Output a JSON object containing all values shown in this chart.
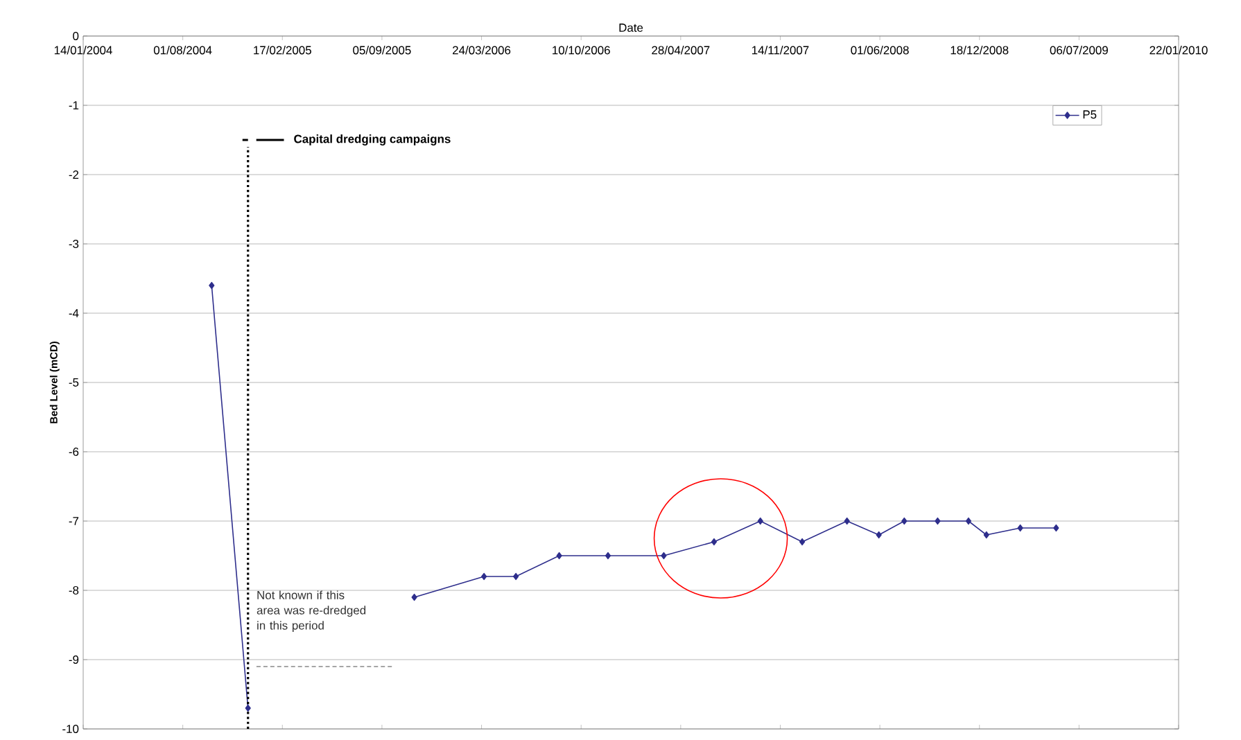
{
  "chart_data": {
    "type": "line",
    "xlabel": "Date",
    "ylabel": "Bed Level (mCD)",
    "x": [
      "2004-09-28",
      "2004-12-10",
      "2005-05-01",
      "2005-11-09",
      "2006-03-29",
      "2006-06-01",
      "2006-08-27",
      "2006-12-03",
      "2007-03-25",
      "2007-07-04",
      "2007-10-05",
      "2007-12-28",
      "2008-03-27",
      "2008-05-30",
      "2008-07-20",
      "2008-09-25",
      "2008-11-26",
      "2009-01-01",
      "2009-03-10",
      "2009-05-21"
    ],
    "series": [
      {
        "name": "P5",
        "color": "#2e2e8c",
        "values": [
          -3.6,
          -9.7,
          null,
          -8.1,
          -7.8,
          -7.8,
          -7.5,
          -7.5,
          -7.5,
          -7.3,
          -7.0,
          -7.3,
          -7.0,
          -7.2,
          -7.0,
          -7.0,
          -7.0,
          -7.2,
          -7.1,
          -7.1
        ]
      },
      {
        "color": "#4c4c4c",
        "x": [
          "2004-12-27",
          "2005-09-30"
        ],
        "values": [
          -9.1,
          -9.1
        ],
        "line_style": "dashed",
        "marker": "none"
      }
    ],
    "xlim": [
      "2004-01-14",
      "2010-01-22"
    ],
    "xticks": [
      {
        "value": "2004-01-14",
        "label": "14/01/2004"
      },
      {
        "value": "2004-08-01",
        "label": "01/08/2004"
      },
      {
        "value": "2005-02-17",
        "label": "17/02/2005"
      },
      {
        "value": "2005-09-05",
        "label": "05/09/2005"
      },
      {
        "value": "2006-03-24",
        "label": "24/03/2006"
      },
      {
        "value": "2006-10-10",
        "label": "10/10/2006"
      },
      {
        "value": "2007-04-28",
        "label": "28/04/2007"
      },
      {
        "value": "2007-11-14",
        "label": "14/11/2007"
      },
      {
        "value": "2008-06-01",
        "label": "01/06/2008"
      },
      {
        "value": "2008-12-18",
        "label": "18/12/2008"
      },
      {
        "value": "2009-07-06",
        "label": "06/07/2009"
      },
      {
        "value": "2010-01-22",
        "label": "22/01/2010"
      }
    ],
    "ylim": [
      -10,
      0
    ],
    "yticks": [
      -10,
      -9,
      -8,
      -7,
      -6,
      -5,
      -4,
      -3,
      -2,
      -1,
      0
    ],
    "ref_lines": [
      {
        "axis": "x",
        "value": "2004-12-10",
        "label": "Capital dredging campaigns",
        "line_style": "dotted",
        "color": "#000000"
      }
    ],
    "annotations": [
      "Not known if this area was re-dredged in this period"
    ],
    "grid": "y",
    "legend": "top right",
    "marker": "diamond",
    "line_style": "solid"
  }
}
